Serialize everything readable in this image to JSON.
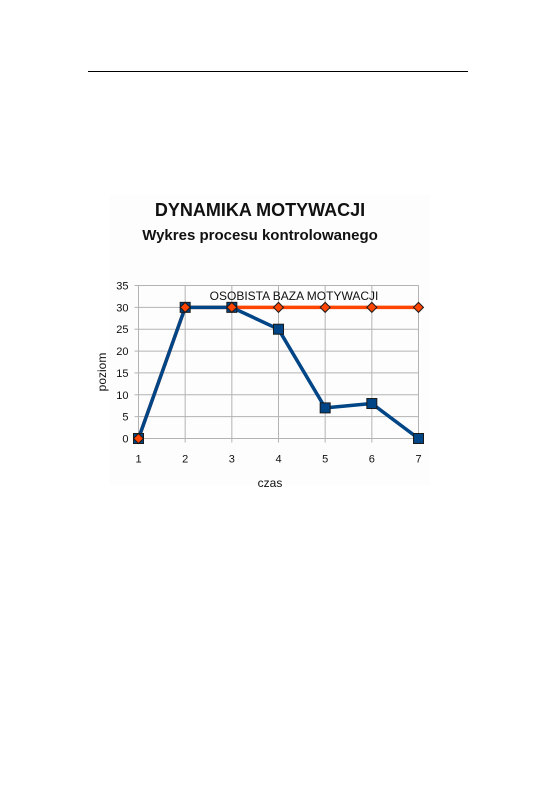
{
  "chart_data": {
    "type": "line",
    "title": "DYNAMIKA MOTYWACJI",
    "subtitle": "Wykres procesu kontrolowanego",
    "xlabel": "czas",
    "ylabel": "poziom",
    "x": [
      1,
      2,
      3,
      4,
      5,
      6,
      7
    ],
    "xlim": [
      1,
      7
    ],
    "ylim": [
      0,
      35
    ],
    "yticks": [
      0,
      5,
      10,
      15,
      20,
      25,
      30,
      35
    ],
    "grid": true,
    "annotation": "OSOBISTA BAZA MOTYWACJI",
    "series": [
      {
        "values": [
          0,
          30,
          30,
          30,
          30,
          30,
          30
        ],
        "color": "#ff4500",
        "marker": "diamond",
        "marker_color": "#ff4500"
      },
      {
        "values": [
          0,
          30,
          30,
          25,
          7,
          8,
          0
        ],
        "color": "#004586",
        "marker": "square",
        "marker_color": "#004586"
      }
    ]
  }
}
